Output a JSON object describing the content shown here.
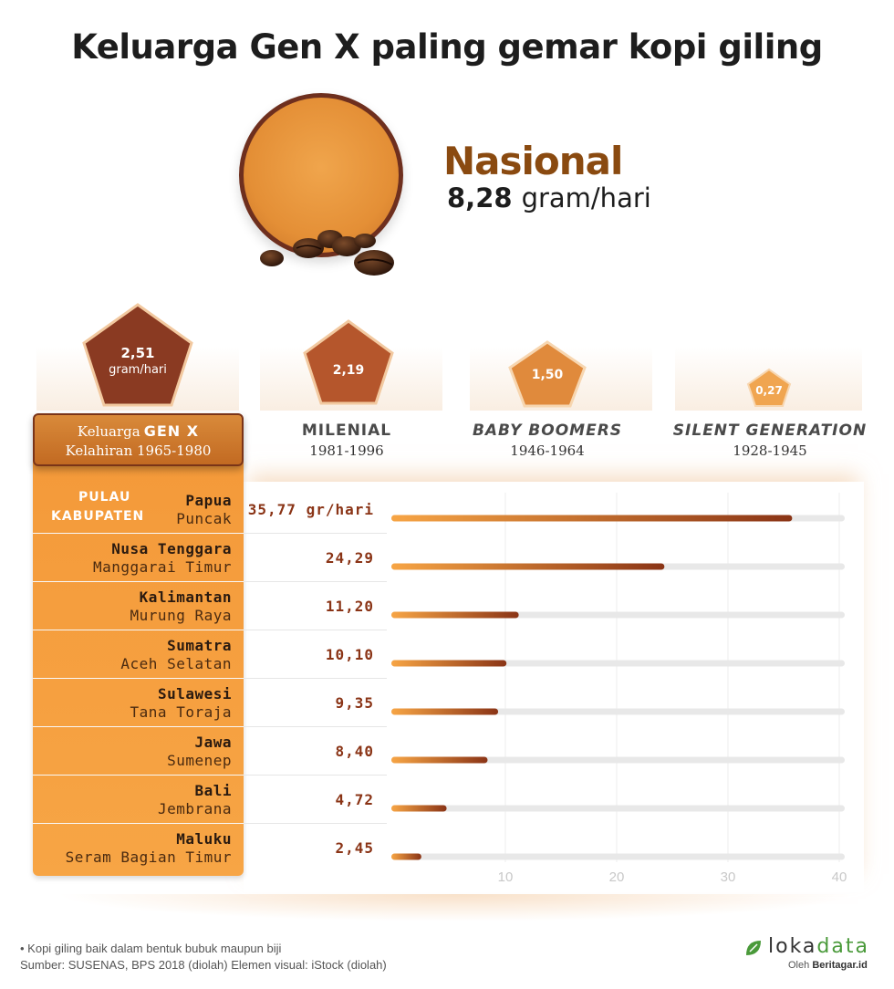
{
  "title": "Keluarga Gen X paling gemar kopi giling",
  "national": {
    "label": "Nasional",
    "value": "8,28",
    "unit": "gram/hari"
  },
  "generations": [
    {
      "key": "genx",
      "value": "2,51",
      "unit": "gram/hari",
      "prefix": "Keluarga",
      "name": "GEN X",
      "years": "Kelahiran 1965-1980",
      "color": "#8a3a22"
    },
    {
      "key": "milenial",
      "value": "2,19",
      "name": "MILENIAL",
      "years": "1981-1996",
      "color": "#b5562c"
    },
    {
      "key": "boomers",
      "value": "1,50",
      "name": "BABY BOOMERS",
      "years": "1946-1964",
      "color": "#e08a3c"
    },
    {
      "key": "silent",
      "value": "0,27",
      "name": "SILENT GENERATION",
      "years": "1928-1945",
      "color": "#f0a550"
    }
  ],
  "table_header": {
    "pulau": "PULAU",
    "kabupaten": "KABUPATEN"
  },
  "chart_data": {
    "type": "bar",
    "orientation": "horizontal",
    "categories": [
      "Papua",
      "Nusa Tenggara",
      "Kalimantan",
      "Sumatra",
      "Sulawesi",
      "Jawa",
      "Bali",
      "Maluku"
    ],
    "kabupaten": [
      "Puncak",
      "Manggarai Timur",
      "Murung Raya",
      "Aceh Selatan",
      "Tana Toraja",
      "Sumenep",
      "Jembrana",
      "Seram Bagian Timur"
    ],
    "values": [
      35.77,
      24.29,
      11.2,
      10.1,
      9.35,
      8.4,
      4.72,
      2.45
    ],
    "value_labels": [
      "35,77 gr/hari",
      "24,29",
      "11,20",
      "10,10",
      "9,35",
      "8,40",
      "4,72",
      "2,45"
    ],
    "xlim": [
      0,
      40
    ],
    "xticks": [
      10,
      20,
      30,
      40
    ],
    "grid": true,
    "bar_gradient": [
      "#f7a545",
      "#8a3416"
    ],
    "track_color": "#e8e8e8"
  },
  "footnote": "• Kopi giling baik dalam bentuk bubuk maupun biji",
  "source": "Sumber: SUSENAS, BPS 2018 (diolah) Elemen visual: iStock (diolah)",
  "logo": {
    "prefix": "loka",
    "suffix": "data",
    "by": "Oleh",
    "brand": "Beritagar.id"
  }
}
